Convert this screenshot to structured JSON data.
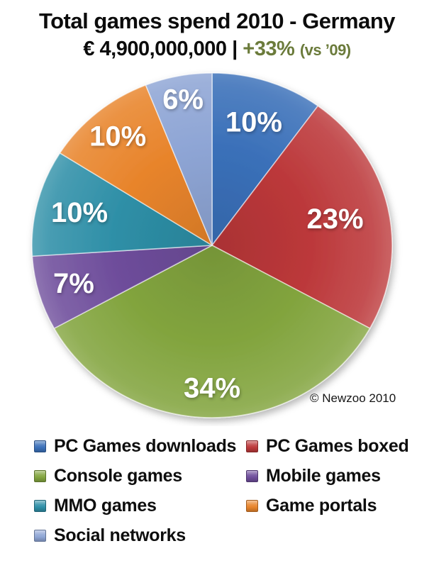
{
  "title": "Total games spend 2010 - Germany",
  "subtitle": {
    "amount": "€ 4,900,000,000",
    "separator": "|",
    "growth": "+33%",
    "growth_note": "(vs ’09)",
    "growth_color": "#6B7B3B"
  },
  "copyright": "© Newzoo 2010",
  "chart_data": {
    "type": "pie",
    "title": "Total games spend 2010 - Germany",
    "total_label": "€ 4,900,000,000",
    "growth_vs_2009": "+33%",
    "start_angle_deg": 0,
    "direction": "clockwise",
    "legend_position": "bottom",
    "legend_columns": 2,
    "slices": [
      {
        "label": "PC Games downloads",
        "value": 10,
        "display": "10%",
        "color": "#3A70B9",
        "label_r": 0.75
      },
      {
        "label": "PC Games boxed",
        "value": 23,
        "display": "23%",
        "color": "#BC383A",
        "label_r": 0.7
      },
      {
        "label": "Console games",
        "value": 34,
        "display": "34%",
        "color": "#82A43E",
        "label_r": 0.83
      },
      {
        "label": "Mobile games",
        "value": 7,
        "display": "7%",
        "color": "#6E4D9B",
        "label_r": 0.8
      },
      {
        "label": "MMO games",
        "value": 10,
        "display": "10%",
        "color": "#2E8FA7",
        "label_r": 0.76
      },
      {
        "label": "Game portals",
        "value": 10,
        "display": "10%",
        "color": "#E8842B",
        "label_r": 0.82
      },
      {
        "label": "Social networks",
        "value": 6,
        "display": "6%",
        "color": "#8EA5D5",
        "label_r": 0.86
      }
    ]
  }
}
